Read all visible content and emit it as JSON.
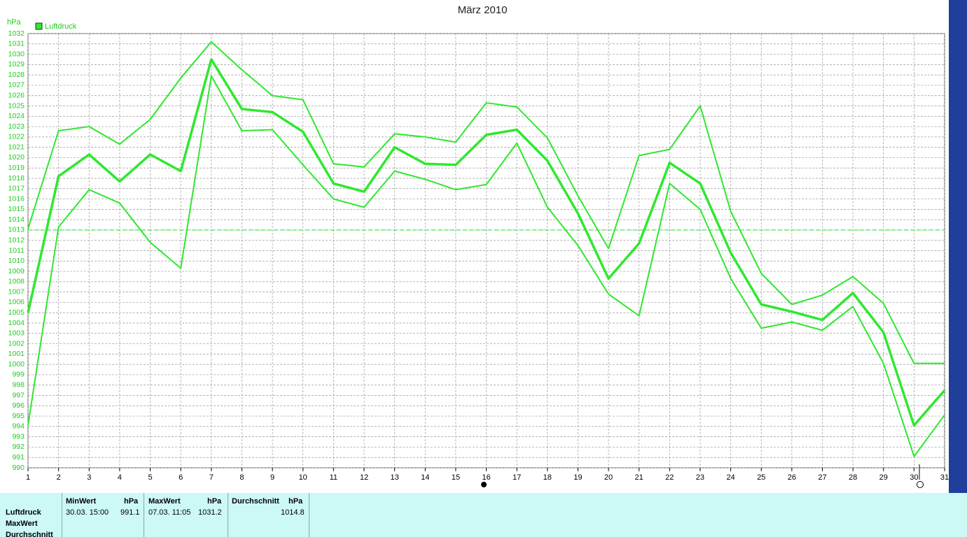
{
  "chart_data": {
    "type": "line",
    "title": "März 2010",
    "y_unit": "hPa",
    "x": [
      1,
      2,
      3,
      4,
      5,
      6,
      7,
      8,
      9,
      10,
      11,
      12,
      13,
      14,
      15,
      16,
      17,
      18,
      19,
      20,
      21,
      22,
      23,
      24,
      25,
      26,
      27,
      28,
      29,
      30,
      31
    ],
    "xlim": [
      1,
      31
    ],
    "xticks": [
      1,
      2,
      3,
      4,
      5,
      6,
      7,
      8,
      9,
      10,
      11,
      12,
      13,
      14,
      15,
      16,
      17,
      18,
      19,
      20,
      21,
      22,
      23,
      24,
      25,
      26,
      27,
      28,
      29,
      30,
      31
    ],
    "ylim": [
      990,
      1032
    ],
    "yticks": [
      990,
      991,
      992,
      993,
      994,
      995,
      996,
      997,
      998,
      999,
      1000,
      1001,
      1002,
      1003,
      1004,
      1005,
      1006,
      1007,
      1008,
      1009,
      1010,
      1011,
      1012,
      1013,
      1014,
      1015,
      1016,
      1017,
      1018,
      1019,
      1020,
      1021,
      1022,
      1023,
      1024,
      1025,
      1026,
      1027,
      1028,
      1029,
      1030,
      1031,
      1032
    ],
    "grid": true,
    "reference_line": 1013,
    "series": [
      {
        "name": "Luftdruck",
        "color": "#2ee82e",
        "values": [
          1005.0,
          1018.2,
          1020.3,
          1017.7,
          1020.3,
          1018.7,
          1029.5,
          1024.7,
          1024.4,
          1022.5,
          1017.5,
          1016.7,
          1021.0,
          1019.4,
          1019.3,
          1022.2,
          1022.7,
          1019.7,
          1014.6,
          1008.3,
          1011.7,
          1019.5,
          1017.5,
          1010.8,
          1005.8,
          1005.1,
          1004.3,
          1006.9,
          1003.1,
          994.1,
          997.5
        ]
      },
      {
        "color": "#2ee82e",
        "values": [
          1013.1,
          1022.6,
          1023.0,
          1021.3,
          1023.7,
          1027.7,
          1031.2,
          1028.5,
          1026.0,
          1025.6,
          1019.4,
          1019.1,
          1022.3,
          1022.0,
          1021.5,
          1025.3,
          1024.9,
          1021.9,
          1016.3,
          1011.2,
          1020.2,
          1020.8,
          1025.0,
          1014.8,
          1008.8,
          1005.8,
          1006.7,
          1008.5,
          1005.9,
          1000.1,
          1000.1
        ]
      },
      {
        "color": "#2ee82e",
        "values": [
          994.1,
          1013.3,
          1016.9,
          1015.6,
          1011.8,
          1009.3,
          1027.9,
          1022.6,
          1022.7,
          1019.3,
          1016.0,
          1015.2,
          1018.7,
          1017.9,
          1016.9,
          1017.4,
          1021.4,
          1015.2,
          1011.5,
          1006.8,
          1004.7,
          1017.5,
          1015.0,
          1008.3,
          1003.5,
          1004.1,
          1003.3,
          1005.6,
          1000.1,
          991.1,
          995.1
        ]
      }
    ]
  },
  "stats_table": {
    "row_labels": [
      "Luftdruck",
      "MaxWert",
      "Durchschnitt"
    ],
    "columns": [
      {
        "header": "MinWert",
        "unit": "hPa",
        "time": "30.03. 15:00",
        "value": 991.1
      },
      {
        "header": "MaxWert",
        "unit": "hPa",
        "time": "07.03. 11:05",
        "value": 1031.2
      },
      {
        "header": "Durchschnitt",
        "unit": "hPa",
        "value": 1014.8
      }
    ]
  }
}
